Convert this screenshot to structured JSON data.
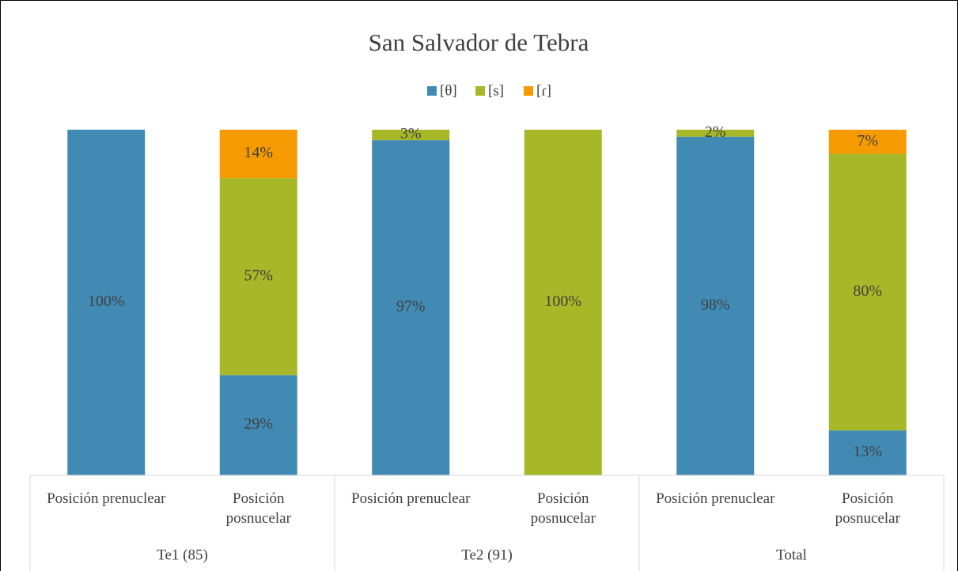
{
  "chart_data": {
    "type": "stacked_bar",
    "title": "San Salvador de Tebra",
    "categories": [
      "Posición prenuclear",
      "Posición posnucelar",
      "Posición prenuclear",
      "Posición posnucelar",
      "Posición prenuclear",
      "Posición posnucelar"
    ],
    "groups": [
      {
        "label": "Te1 (85)",
        "size": 2
      },
      {
        "label": "Te2 (91)",
        "size": 2
      },
      {
        "label": "Total",
        "size": 2
      }
    ],
    "series": [
      {
        "name": "[θ]",
        "color": "#418ab3",
        "values": [
          100,
          29,
          97,
          null,
          98,
          13
        ],
        "value_labels": [
          "100%",
          "29%",
          "97%",
          null,
          "98%",
          "13%"
        ]
      },
      {
        "name": "[s]",
        "color": "#a6b727",
        "values": [
          null,
          57,
          3,
          100,
          2,
          80
        ],
        "value_labels": [
          null,
          "57%",
          "3%",
          "100%",
          "2%",
          "80%"
        ]
      },
      {
        "name": "[ɾ]",
        "color": "#f59a00",
        "values": [
          null,
          14,
          null,
          null,
          null,
          7
        ],
        "value_labels": [
          null,
          "14%",
          null,
          null,
          null,
          "7%"
        ]
      }
    ],
    "ylim": [
      0,
      100
    ],
    "legend": "top"
  }
}
